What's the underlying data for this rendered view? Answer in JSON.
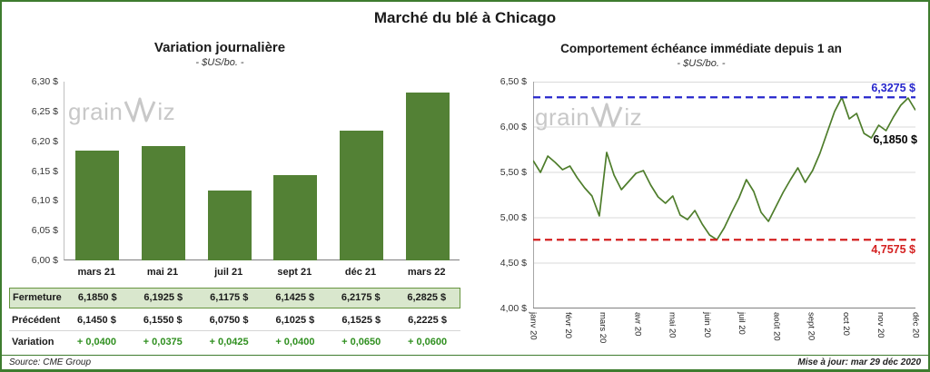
{
  "page": {
    "title": "Marché du blé à Chicago"
  },
  "watermark": {
    "part1": "grain",
    "part2": "iz"
  },
  "chart_data": [
    {
      "type": "bar",
      "title": "Variation journalière",
      "subtitle": "- $US/bo. -",
      "categories": [
        "mars 21",
        "mai 21",
        "juil 21",
        "sept 21",
        "déc 21",
        "mars 22"
      ],
      "values": [
        6.185,
        6.1925,
        6.1175,
        6.1425,
        6.2175,
        6.2825
      ],
      "ylim": [
        6.0,
        6.3
      ],
      "ytick_labels": [
        "6,30 $",
        "6,25 $",
        "6,20 $",
        "6,15 $",
        "6,10 $",
        "6,05 $",
        "6,00 $"
      ],
      "bar_color": "#538135",
      "grid": false
    },
    {
      "type": "line",
      "title": "Comportement échéance immédiate depuis 1 an",
      "subtitle": "- $US/bo. -",
      "x_labels": [
        "janv 20",
        "févr 20",
        "mars 20",
        "avr 20",
        "mai 20",
        "juin 20",
        "juil 20",
        "août 20",
        "sept 20",
        "oct 20",
        "nov 20",
        "déc 20"
      ],
      "ylim": [
        4.0,
        6.5
      ],
      "ytick_labels": [
        "6,50 $",
        "6,00 $",
        "5,50 $",
        "5,00 $",
        "4,50 $",
        "4,00 $"
      ],
      "grid": true,
      "series": [
        {
          "name": "échéance immédiate",
          "color": "#4e7d2b",
          "values": [
            5.63,
            5.5,
            5.68,
            5.61,
            5.53,
            5.57,
            5.44,
            5.33,
            5.24,
            5.02,
            5.72,
            5.47,
            5.31,
            5.4,
            5.49,
            5.52,
            5.36,
            5.23,
            5.16,
            5.24,
            5.03,
            4.98,
            5.08,
            4.93,
            4.81,
            4.7575,
            4.89,
            5.06,
            5.22,
            5.42,
            5.29,
            5.06,
            4.96,
            5.12,
            5.28,
            5.42,
            5.55,
            5.39,
            5.52,
            5.71,
            5.94,
            6.17,
            6.3275,
            6.09,
            6.15,
            5.93,
            5.88,
            6.02,
            5.96,
            6.11,
            6.24,
            6.32,
            6.185
          ]
        }
      ],
      "hlines": [
        {
          "value": 6.3275,
          "label": "6,3275 $",
          "color": "#2727cc",
          "style": "dashed"
        },
        {
          "value": 4.7575,
          "label": "4,7575 $",
          "color": "#d42020",
          "style": "dashed"
        }
      ],
      "end_label": {
        "text": "6,1850 $",
        "color": "#000000"
      }
    }
  ],
  "table": {
    "rows": [
      {
        "label": "Fermeture",
        "values": [
          "6,1850 $",
          "6,1925 $",
          "6,1175 $",
          "6,1425 $",
          "6,2175 $",
          "6,2825 $"
        ]
      },
      {
        "label": "Précédent",
        "values": [
          "6,1450 $",
          "6,1550 $",
          "6,0750 $",
          "6,1025 $",
          "6,1525 $",
          "6,2225 $"
        ]
      },
      {
        "label": "Variation",
        "values": [
          "+ 0,0400",
          "+ 0,0375",
          "+ 0,0425",
          "+ 0,0400",
          "+ 0,0650",
          "+ 0,0600"
        ]
      }
    ]
  },
  "footer": {
    "source": "Source: CME Group",
    "updated": "Mise à jour: mar 29 déc 2020"
  },
  "colors": {
    "border_green": "#3e7c2f",
    "bar_green": "#538135",
    "line_green": "#4e7d2b",
    "variation_green": "#2f8f1f",
    "max_blue": "#2727cc",
    "min_red": "#d42020",
    "fermeture_row_bg": "#d9e7cd"
  }
}
